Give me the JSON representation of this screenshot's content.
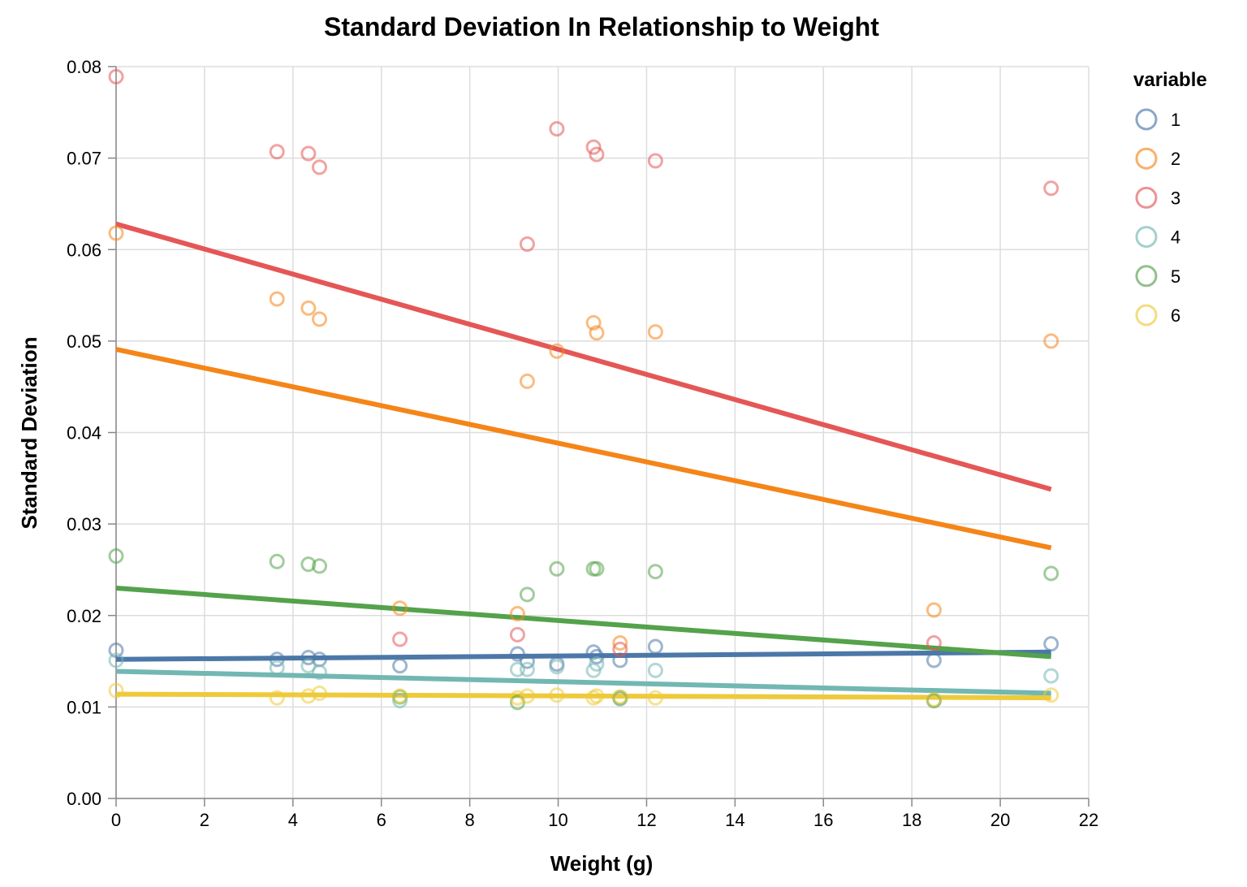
{
  "chart_data": {
    "type": "scatter",
    "title": "Standard Deviation In Relationship to Weight",
    "xlabel": "Weight (g)",
    "ylabel": "Standard Deviation",
    "xlim": [
      0,
      22
    ],
    "ylim": [
      0,
      0.08
    ],
    "x_ticks": [
      "0",
      "2",
      "4",
      "6",
      "8",
      "10",
      "12",
      "14",
      "16",
      "18",
      "20",
      "22"
    ],
    "y_ticks": [
      "0.00",
      "0.01",
      "0.02",
      "0.03",
      "0.04",
      "0.05",
      "0.06",
      "0.07",
      "0.08"
    ],
    "grid": true,
    "legend": {
      "title": "variable",
      "position": "right"
    },
    "x": [
      0,
      3.64,
      4.35,
      4.6,
      6.42,
      9.08,
      9.3,
      9.97,
      10.8,
      10.87,
      11.4,
      12.2,
      18.5,
      21.15
    ],
    "series": [
      {
        "name": "1",
        "color": "#4c78a8",
        "values": [
          0.0162,
          0.0152,
          0.0154,
          0.0152,
          0.0145,
          0.0158,
          0.015,
          0.0147,
          0.016,
          0.0155,
          0.0151,
          0.0166,
          0.0151,
          0.0169
        ],
        "trend": [
          0.0152,
          0.016
        ]
      },
      {
        "name": "2",
        "color": "#f58518",
        "values": [
          0.0618,
          0.0546,
          0.0536,
          0.0524,
          0.0208,
          0.0202,
          0.0456,
          0.0489,
          0.052,
          0.0509,
          0.017,
          0.051,
          0.0206,
          0.05
        ],
        "trend": [
          0.0491,
          0.0274
        ]
      },
      {
        "name": "3",
        "color": "#e45756",
        "values": [
          0.0789,
          0.0707,
          0.0705,
          0.069,
          0.0174,
          0.0179,
          0.0606,
          0.0732,
          0.0712,
          0.0704,
          0.0163,
          0.0697,
          0.017,
          0.0667
        ],
        "trend": [
          0.0628,
          0.0338
        ]
      },
      {
        "name": "4",
        "color": "#72b7b2",
        "values": [
          0.0151,
          0.0143,
          0.0145,
          0.0138,
          0.0107,
          0.0141,
          0.0141,
          0.0144,
          0.014,
          0.0147,
          0.0109,
          0.014,
          0.0107,
          0.0134
        ],
        "trend": [
          0.0139,
          0.0115
        ]
      },
      {
        "name": "5",
        "color": "#54a24b",
        "values": [
          0.0265,
          0.0259,
          0.0256,
          0.0254,
          0.0111,
          0.0105,
          0.0223,
          0.0251,
          0.0251,
          0.0251,
          0.011,
          0.0248,
          0.0107,
          0.0246
        ],
        "trend": [
          0.023,
          0.0155
        ]
      },
      {
        "name": "6",
        "color": "#eeca3b",
        "values": [
          0.0118,
          0.011,
          0.0112,
          0.0115,
          0.0112,
          0.011,
          0.0112,
          0.0113,
          0.011,
          0.0112,
          0.0111,
          0.011,
          0.0108,
          0.0113
        ],
        "trend": [
          0.0114,
          0.011
        ]
      }
    ]
  }
}
